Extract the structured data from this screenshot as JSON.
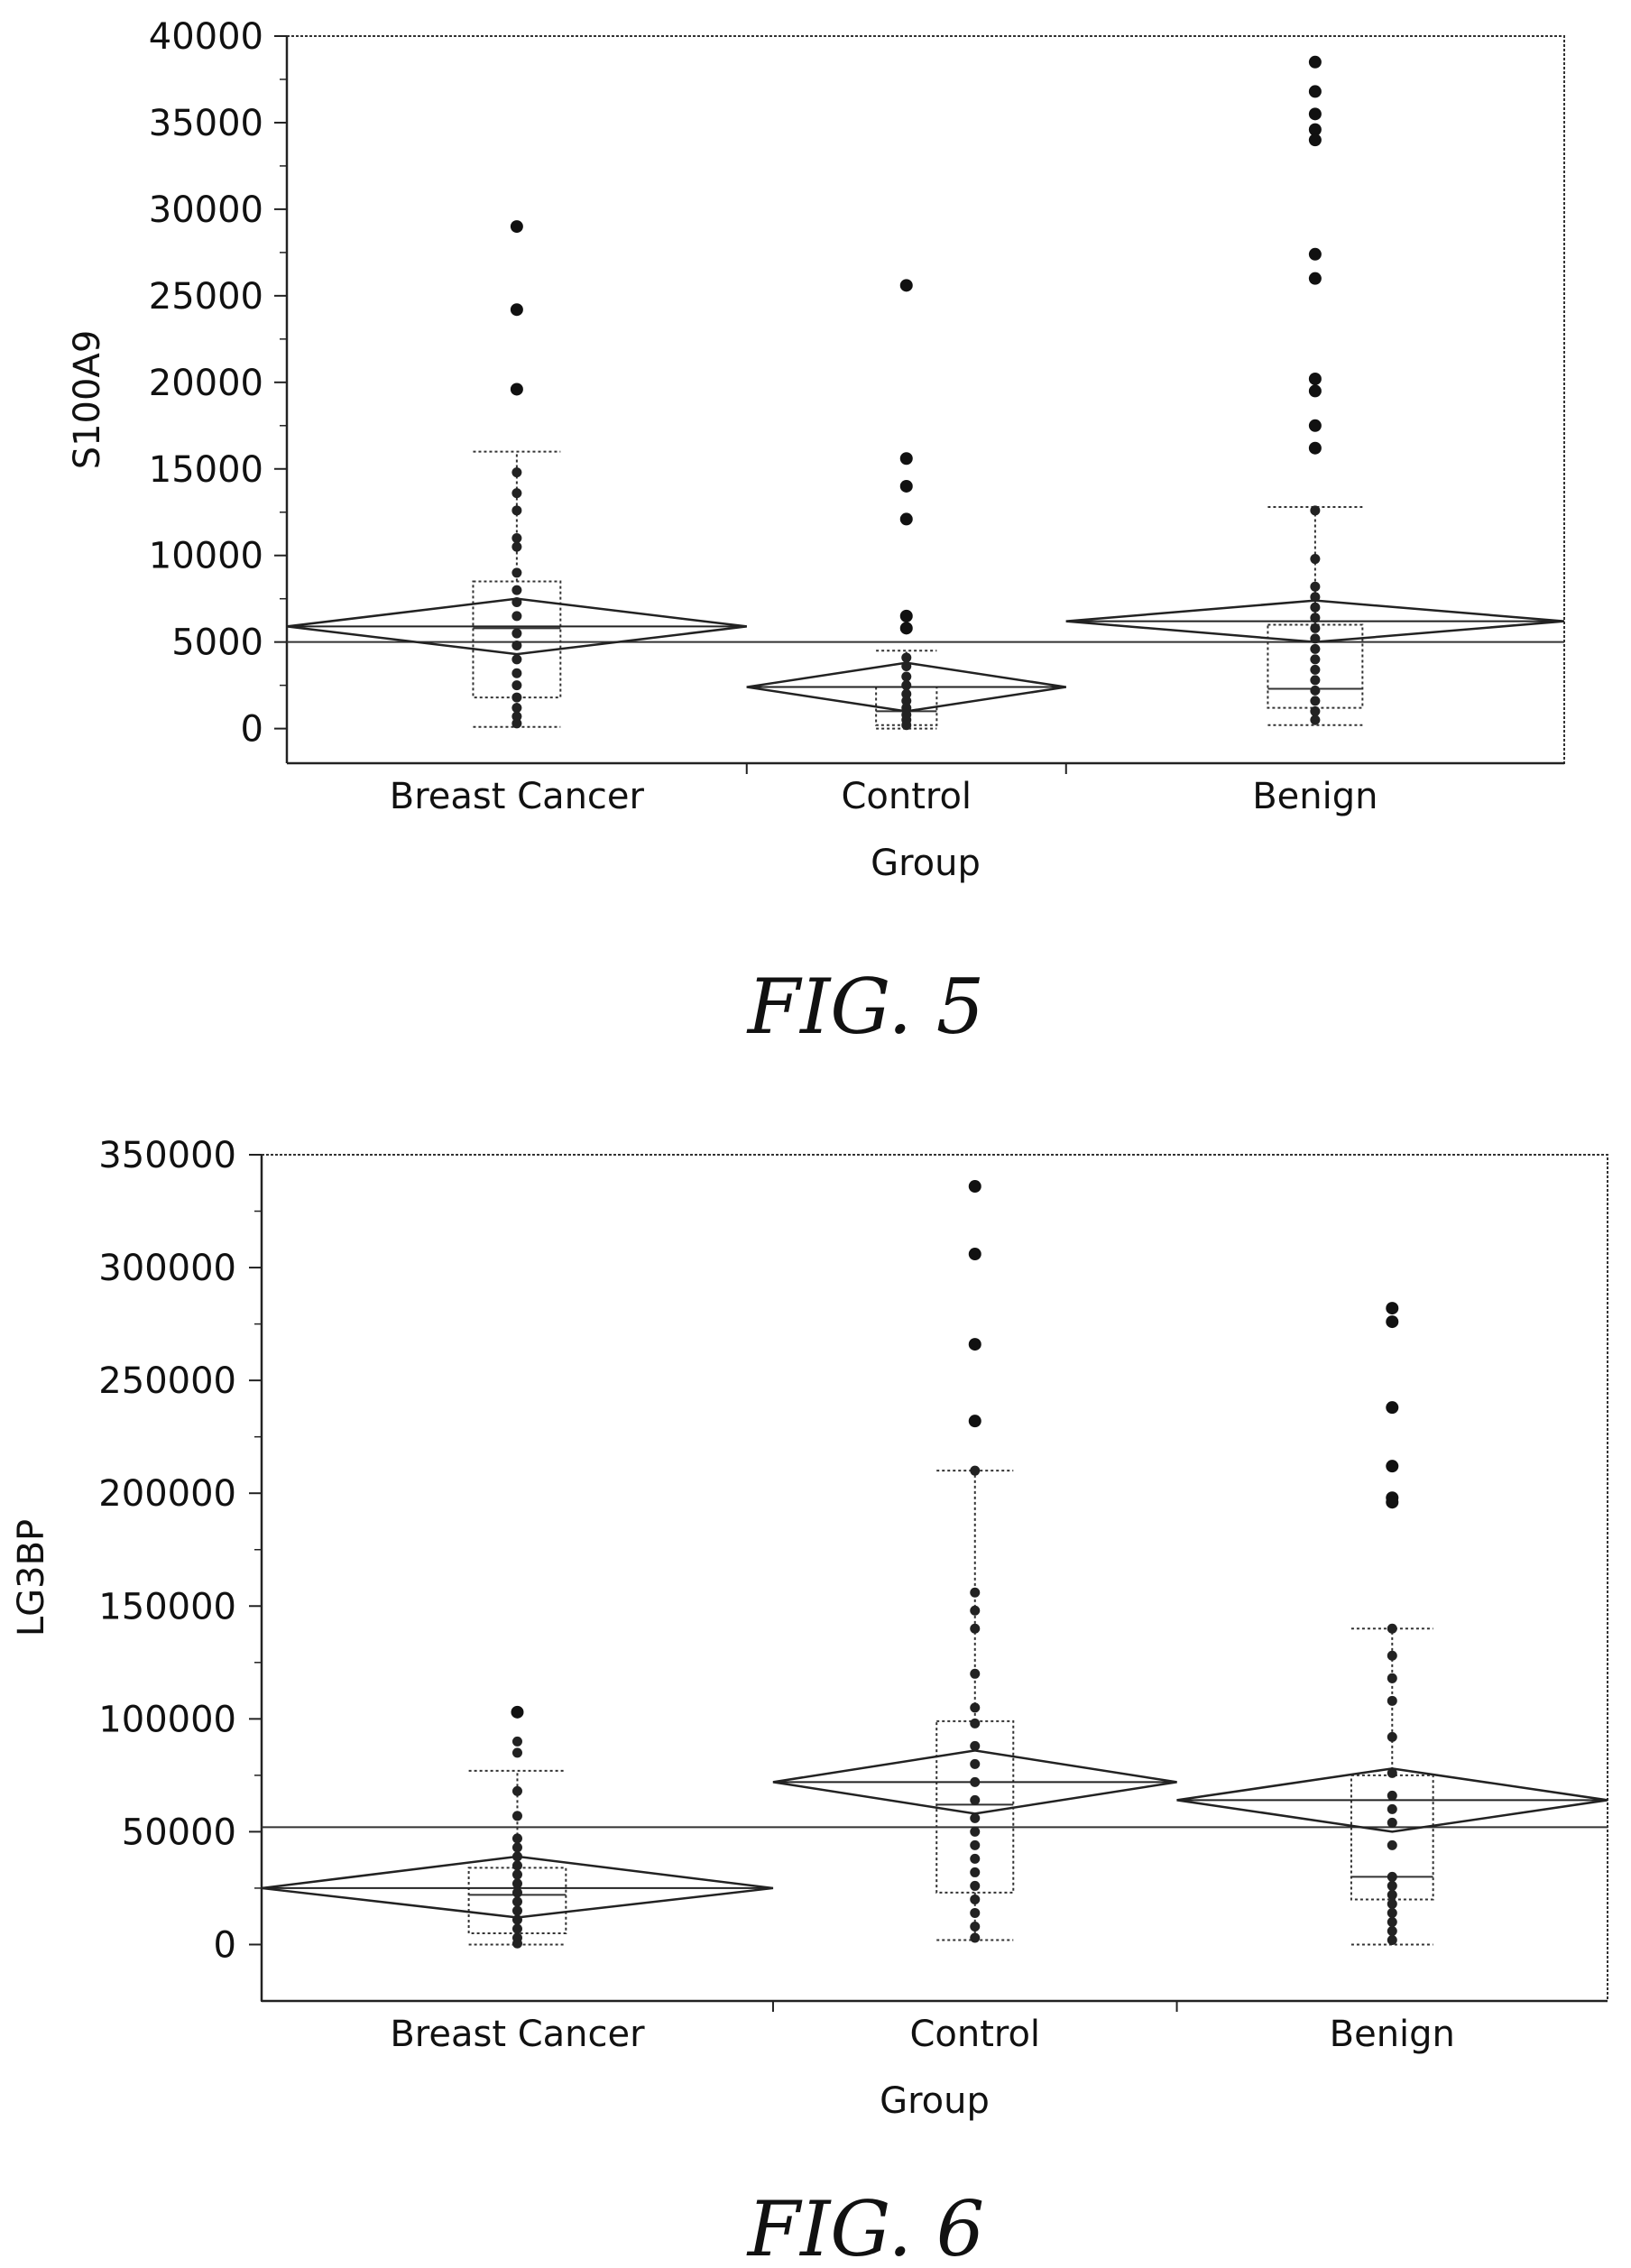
{
  "chart_data": [
    {
      "type": "box",
      "caption": "FIG. 5",
      "xlabel": "Group",
      "ylabel": "S100A9",
      "ylim": [
        -2000,
        40000
      ],
      "yticks": [
        0,
        5000,
        10000,
        15000,
        20000,
        25000,
        30000,
        35000,
        40000
      ],
      "ytick_labels": [
        "0",
        "5000",
        "10000",
        "15000",
        "20000",
        "25000",
        "30000",
        "35000",
        "40000"
      ],
      "grand_mean": 5000,
      "grid": false,
      "groups": [
        {
          "name": "Breast Cancer",
          "x_range": [
            0,
            0.36
          ],
          "box": {
            "q1": 1800,
            "median": 5800,
            "q3": 8500,
            "whisker_low": 100,
            "whisker_high": 16000
          },
          "mean_diamond": {
            "mean": 5900,
            "lower": 4300,
            "upper": 7500
          },
          "outliers": [
            29000,
            24200,
            19600
          ],
          "points": [
            14800,
            13600,
            12600,
            11000,
            10500,
            9000,
            8000,
            7300,
            6500,
            5500,
            4800,
            4000,
            3200,
            2500,
            1800,
            1200,
            700,
            300
          ]
        },
        {
          "name": "Control",
          "x_range": [
            0.36,
            0.61
          ],
          "box": {
            "q1": 200,
            "median": 1000,
            "q3": 2400,
            "whisker_low": 0,
            "whisker_high": 4500
          },
          "mean_diamond": {
            "mean": 2400,
            "lower": 1000,
            "upper": 3800
          },
          "outliers": [
            25600,
            15600,
            14000,
            12100,
            6500,
            5800
          ],
          "points": [
            4100,
            3600,
            3000,
            2500,
            2000,
            1600,
            1200,
            800,
            500,
            200
          ]
        },
        {
          "name": "Benign",
          "x_range": [
            0.61,
            1.0
          ],
          "box": {
            "q1": 1200,
            "median": 2300,
            "q3": 6000,
            "whisker_low": 200,
            "whisker_high": 12800
          },
          "mean_diamond": {
            "mean": 6200,
            "lower": 5000,
            "upper": 7400
          },
          "outliers": [
            38500,
            36800,
            35500,
            34600,
            34000,
            27400,
            26000,
            20200,
            19500,
            17500,
            16200
          ],
          "points": [
            12600,
            9800,
            8200,
            7600,
            7000,
            6400,
            5800,
            5200,
            4600,
            4000,
            3400,
            2800,
            2200,
            1600,
            1000,
            500
          ]
        }
      ]
    },
    {
      "type": "box",
      "caption": "FIG. 6",
      "xlabel": "Group",
      "ylabel": "LG3BP",
      "ylim": [
        -25000,
        350000
      ],
      "yticks": [
        0,
        50000,
        100000,
        150000,
        200000,
        250000,
        300000,
        350000
      ],
      "ytick_labels": [
        "0",
        "50000",
        "100000",
        "150000",
        "200000",
        "250000",
        "300000",
        "350000"
      ],
      "grand_mean": 52000,
      "grid": false,
      "groups": [
        {
          "name": "Breast Cancer",
          "x_range": [
            0,
            0.38
          ],
          "box": {
            "q1": 5000,
            "median": 22000,
            "q3": 34000,
            "whisker_low": 0,
            "whisker_high": 77000
          },
          "mean_diamond": {
            "mean": 25000,
            "lower": 12000,
            "upper": 39000
          },
          "outliers": [
            103000
          ],
          "points": [
            90000,
            85000,
            68000,
            57000,
            47000,
            43000,
            39000,
            35000,
            31000,
            27000,
            23000,
            19000,
            15000,
            11000,
            7000,
            3000,
            500
          ]
        },
        {
          "name": "Control",
          "x_range": [
            0.38,
            0.68
          ],
          "box": {
            "q1": 23000,
            "median": 62000,
            "q3": 99000,
            "whisker_low": 2000,
            "whisker_high": 210000
          },
          "mean_diamond": {
            "mean": 72000,
            "lower": 58000,
            "upper": 86000
          },
          "outliers": [
            336000,
            306000,
            266000,
            232000
          ],
          "points": [
            210000,
            156000,
            148000,
            140000,
            120000,
            105000,
            98000,
            88000,
            80000,
            72000,
            64000,
            56000,
            50000,
            44000,
            38000,
            32000,
            26000,
            20000,
            14000,
            8000,
            3000
          ]
        },
        {
          "name": "Benign",
          "x_range": [
            0.68,
            1.0
          ],
          "box": {
            "q1": 20000,
            "median": 30000,
            "q3": 75000,
            "whisker_low": 0,
            "whisker_high": 140000
          },
          "mean_diamond": {
            "mean": 64000,
            "lower": 50000,
            "upper": 78000
          },
          "outliers": [
            282000,
            276000,
            238000,
            212000,
            198000,
            196000
          ],
          "points": [
            140000,
            128000,
            118000,
            108000,
            92000,
            76000,
            66000,
            60000,
            54000,
            44000,
            30000,
            26000,
            22000,
            18000,
            14000,
            10000,
            6000,
            2000
          ]
        }
      ]
    }
  ]
}
